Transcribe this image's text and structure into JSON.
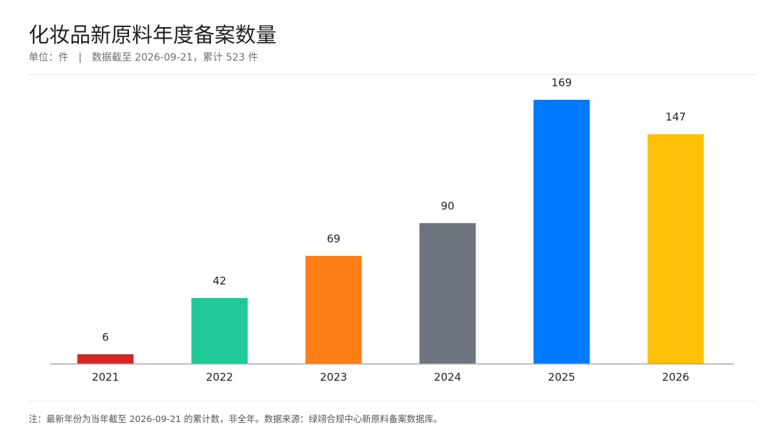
{
  "header": {
    "title": "化妆品新原料年度备案数量",
    "subtitle_unit": "单位：件",
    "subtitle_separator": "|",
    "subtitle_note": "数据截至 2026-09-21，累计 523 件"
  },
  "footer": {
    "note": "注：最新年份为当年截至 2026-09-21 的累计数，非全年。数据来源：绿翊合规中心新原料备案数据库。"
  },
  "chart_data": {
    "type": "bar",
    "categories": [
      "2021",
      "2022",
      "2023",
      "2024",
      "2025",
      "2026"
    ],
    "values": [
      6,
      42,
      69,
      90,
      169,
      147
    ],
    "colors": [
      "#d62728",
      "#20c997",
      "#fd7e14",
      "#6c757d",
      "#007bff",
      "#ffc107"
    ],
    "ylim": [
      0,
      169
    ],
    "grid": false,
    "legend": "none",
    "data_labels": true
  }
}
